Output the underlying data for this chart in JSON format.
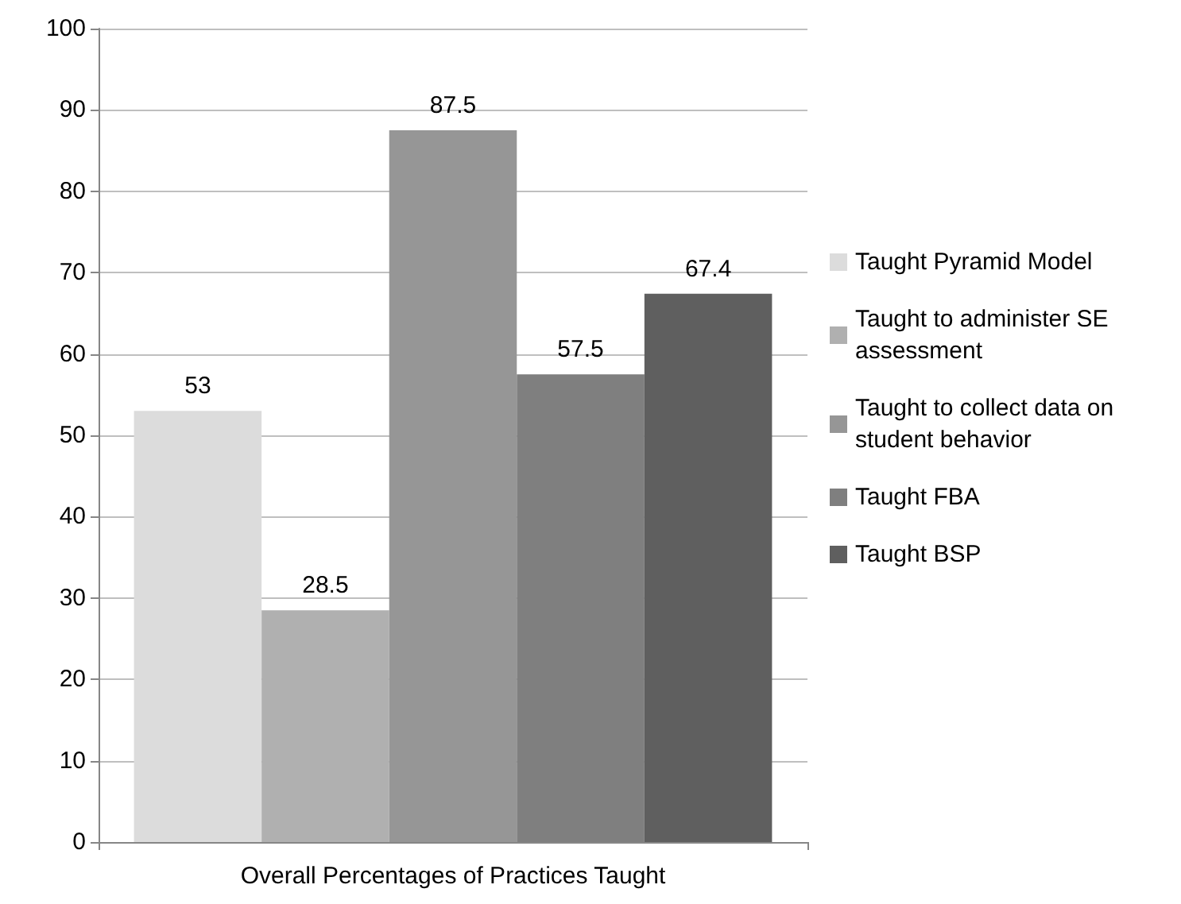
{
  "chart_data": {
    "type": "bar",
    "categories": [
      "Overall Percentages of Practices Taught"
    ],
    "series": [
      {
        "name": "Taught Pyramid Model",
        "color": "#dcdcdc",
        "values": [
          53
        ]
      },
      {
        "name": "Taught to administer SE assessment",
        "color": "#b0b0b0",
        "values": [
          28.5
        ]
      },
      {
        "name": "Taught to collect data on student behavior",
        "color": "#969696",
        "values": [
          87.5
        ]
      },
      {
        "name": "Taught FBA",
        "color": "#7f7f7f",
        "values": [
          57.5
        ]
      },
      {
        "name": "Taught BSP",
        "color": "#5f5f5f",
        "values": [
          67.4
        ]
      }
    ],
    "ylim": [
      0,
      100
    ],
    "yticks": [
      0,
      10,
      20,
      30,
      40,
      50,
      60,
      70,
      80,
      90,
      100
    ],
    "grid": "y",
    "legend": "right",
    "data_labels": true
  }
}
